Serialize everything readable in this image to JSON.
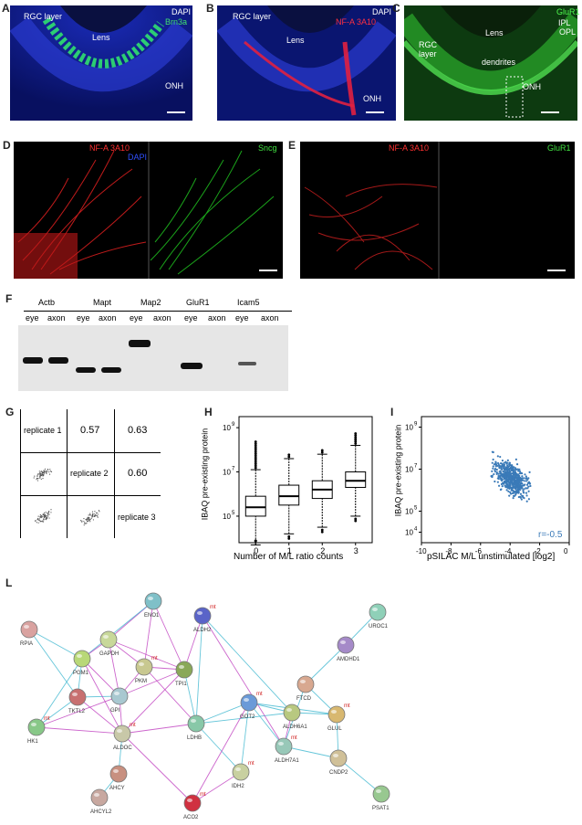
{
  "panels": {
    "A": {
      "label": "A",
      "rgc": "RGC layer",
      "lens": "Lens",
      "dapi": "DAPI",
      "marker": "Brn3a",
      "onh": "ONH"
    },
    "B": {
      "label": "B",
      "rgc": "RGC layer",
      "lens": "Lens",
      "dapi": "DAPI",
      "marker": "NF-A 3A10",
      "onh": "ONH"
    },
    "C": {
      "label": "C",
      "lens": "Lens",
      "marker": "GluR1",
      "ipl": "IPL",
      "opl": "OPL",
      "rgc": "RGC\nlayer",
      "dendrites": "dendrites",
      "onh": "ONH"
    },
    "D": {
      "label": "D",
      "left_marker": "NF-A 3A10",
      "left_dapi": "DAPI",
      "right_marker": "Sncg"
    },
    "E": {
      "label": "E",
      "left_marker": "NF-A 3A10",
      "right_marker": "GluR1"
    },
    "F": {
      "label": "F",
      "genes": [
        "Actb",
        "Mapt",
        "Map2",
        "GluR1",
        "Icam5"
      ],
      "sub": [
        "eye",
        "axon"
      ]
    },
    "G": {
      "label": "G",
      "replicates": [
        "replicate 1",
        "replicate 2",
        "replicate 3"
      ],
      "corr": [
        "0.57",
        "0.63",
        "0.60"
      ]
    },
    "H": {
      "label": "H",
      "ylabel": "IBAQ pre-existing protein",
      "xlabel": "Number of M/L ratio counts"
    },
    "I": {
      "label": "I",
      "ylabel": "IBAQ pre-existing protein",
      "xlabel": "pSILAC M/L unstimulated [log2]",
      "r": "r=-0.5"
    },
    "L": {
      "label": "L"
    }
  },
  "chart_data": [
    {
      "type": "box",
      "panel": "H",
      "categories": [
        "0",
        "1",
        "2",
        "3"
      ],
      "medians_log10": [
        5.4,
        5.9,
        6.2,
        6.6
      ],
      "q1_log10": [
        5.0,
        5.5,
        5.8,
        6.3
      ],
      "q3_log10": [
        5.9,
        6.4,
        6.6,
        7.0
      ],
      "ytick_labels": [
        "10",
        "10",
        "10"
      ],
      "ytick_exponents": [
        "9",
        "7",
        "5"
      ],
      "ytick_values": [
        9,
        7,
        5
      ],
      "ylim": [
        3.8,
        9.5
      ],
      "xlabel": "Number of M/L ratio counts",
      "ylabel": "IBAQ pre-existing protein"
    },
    {
      "type": "scatter",
      "panel": "I",
      "xlim": [
        -10,
        0
      ],
      "xticks": [
        "-10",
        "-8",
        "-6",
        "-4",
        "-2",
        "0"
      ],
      "ytick_labels": [
        "10",
        "10",
        "10",
        "10"
      ],
      "ytick_exponents": [
        "9",
        "7",
        "5",
        "4"
      ],
      "ytick_values": [
        9,
        7,
        5,
        4
      ],
      "ylim": [
        3.5,
        9.5
      ],
      "xlabel": "pSILAC M/L unstimulated [log2]",
      "ylabel": "IBAQ pre-existing protein",
      "annotation": "r=-0.5"
    }
  ],
  "network": {
    "nodes": [
      {
        "name": "RPIA",
        "color": "#d9a2a0",
        "mt": ""
      },
      {
        "name": "ENO1",
        "color": "#7fc0c8",
        "mt": ""
      },
      {
        "name": "ALDH2",
        "color": "#5a64c8",
        "mt": "mt"
      },
      {
        "name": "UROC1",
        "color": "#8fd0b8",
        "mt": ""
      },
      {
        "name": "AMDHD1",
        "color": "#a58ac8",
        "mt": ""
      },
      {
        "name": "GAPDH",
        "color": "#c8d89a",
        "mt": ""
      },
      {
        "name": "PGM1",
        "color": "#b8d878",
        "mt": ""
      },
      {
        "name": "PKM",
        "color": "#c8c890",
        "mt": "mt"
      },
      {
        "name": "TPI1",
        "color": "#8aa858",
        "mt": ""
      },
      {
        "name": "FTCD",
        "color": "#d8a890",
        "mt": ""
      },
      {
        "name": "TKTL2",
        "color": "#c87070",
        "mt": ""
      },
      {
        "name": "GPI",
        "color": "#a8c8d0",
        "mt": ""
      },
      {
        "name": "GOT2",
        "color": "#6a9ad8",
        "mt": "mt"
      },
      {
        "name": "ALDH6A1",
        "color": "#b8c880",
        "mt": ""
      },
      {
        "name": "GLUL",
        "color": "#d8b870",
        "mt": "mt"
      },
      {
        "name": "HK1",
        "color": "#88c888",
        "mt": "mt"
      },
      {
        "name": "ALDOC",
        "color": "#c8c8a8",
        "mt": "mt"
      },
      {
        "name": "LDHB",
        "color": "#88c8a8",
        "mt": ""
      },
      {
        "name": "ALDH7A1",
        "color": "#98c8b8",
        "mt": "mt"
      },
      {
        "name": "CNDP2",
        "color": "#d0c098",
        "mt": ""
      },
      {
        "name": "AHCY",
        "color": "#c89080",
        "mt": ""
      },
      {
        "name": "IDH2",
        "color": "#c8d0a0",
        "mt": "mt"
      },
      {
        "name": "AHCYL2",
        "color": "#c8a8a0",
        "mt": ""
      },
      {
        "name": "ACO2",
        "color": "#d03040",
        "mt": "mt"
      },
      {
        "name": "PSAT1",
        "color": "#98c890",
        "mt": ""
      }
    ]
  }
}
